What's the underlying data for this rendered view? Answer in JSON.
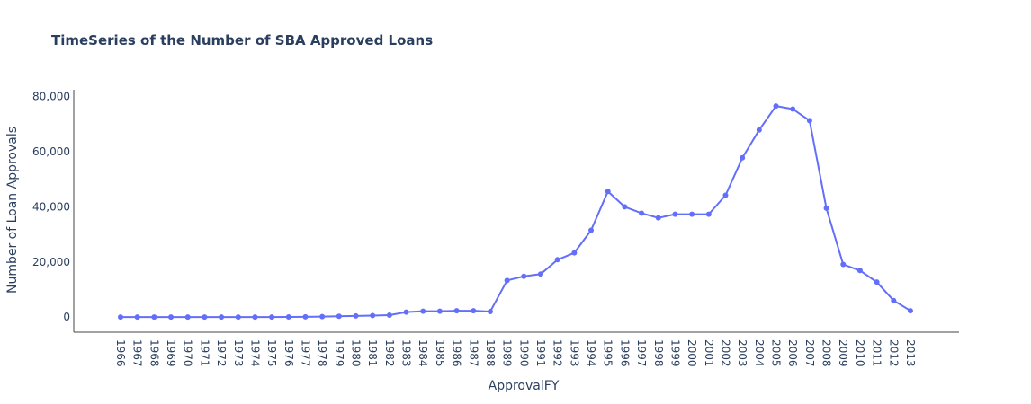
{
  "chart_data": {
    "type": "line",
    "title": "TimeSeries of the Number of SBA Approved Loans",
    "xlabel": "ApprovalFY",
    "ylabel": "Number of Loan Approvals",
    "x": [
      "1966",
      "1967",
      "1968",
      "1969",
      "1970",
      "1971",
      "1972",
      "1973",
      "1974",
      "1975",
      "1976",
      "1977",
      "1978",
      "1979",
      "1980",
      "1981",
      "1982",
      "1983",
      "1984",
      "1985",
      "1986",
      "1987",
      "1988",
      "1989",
      "1990",
      "1991",
      "1992",
      "1993",
      "1994",
      "1995",
      "1996",
      "1997",
      "1998",
      "1999",
      "2000",
      "2001",
      "2002",
      "2003",
      "2004",
      "2005",
      "2006",
      "2007",
      "2008",
      "2009",
      "2010",
      "2011",
      "2012",
      "2013"
    ],
    "series": [
      {
        "values": [
          0,
          0,
          0,
          0,
          0,
          0,
          0,
          0,
          0,
          0,
          50,
          100,
          150,
          300,
          400,
          550,
          700,
          1800,
          2100,
          2100,
          2300,
          2300,
          2000,
          13300,
          14800,
          15600,
          20800,
          23300,
          31500,
          45600,
          40000,
          37700,
          36000,
          37300,
          37300,
          37300,
          44200,
          57800,
          67900,
          76600,
          75500,
          71300,
          39500,
          19100,
          16900,
          12700,
          6000,
          2300
        ]
      }
    ],
    "yticks": [
      "0",
      "20,000",
      "40,000",
      "60,000",
      "80,000"
    ],
    "ytick_values": [
      0,
      20000,
      40000,
      60000,
      80000
    ],
    "ylim": [
      -5500,
      82500
    ],
    "grid": false,
    "line_color": "#636efa",
    "text_color": "#2a3f5f"
  }
}
